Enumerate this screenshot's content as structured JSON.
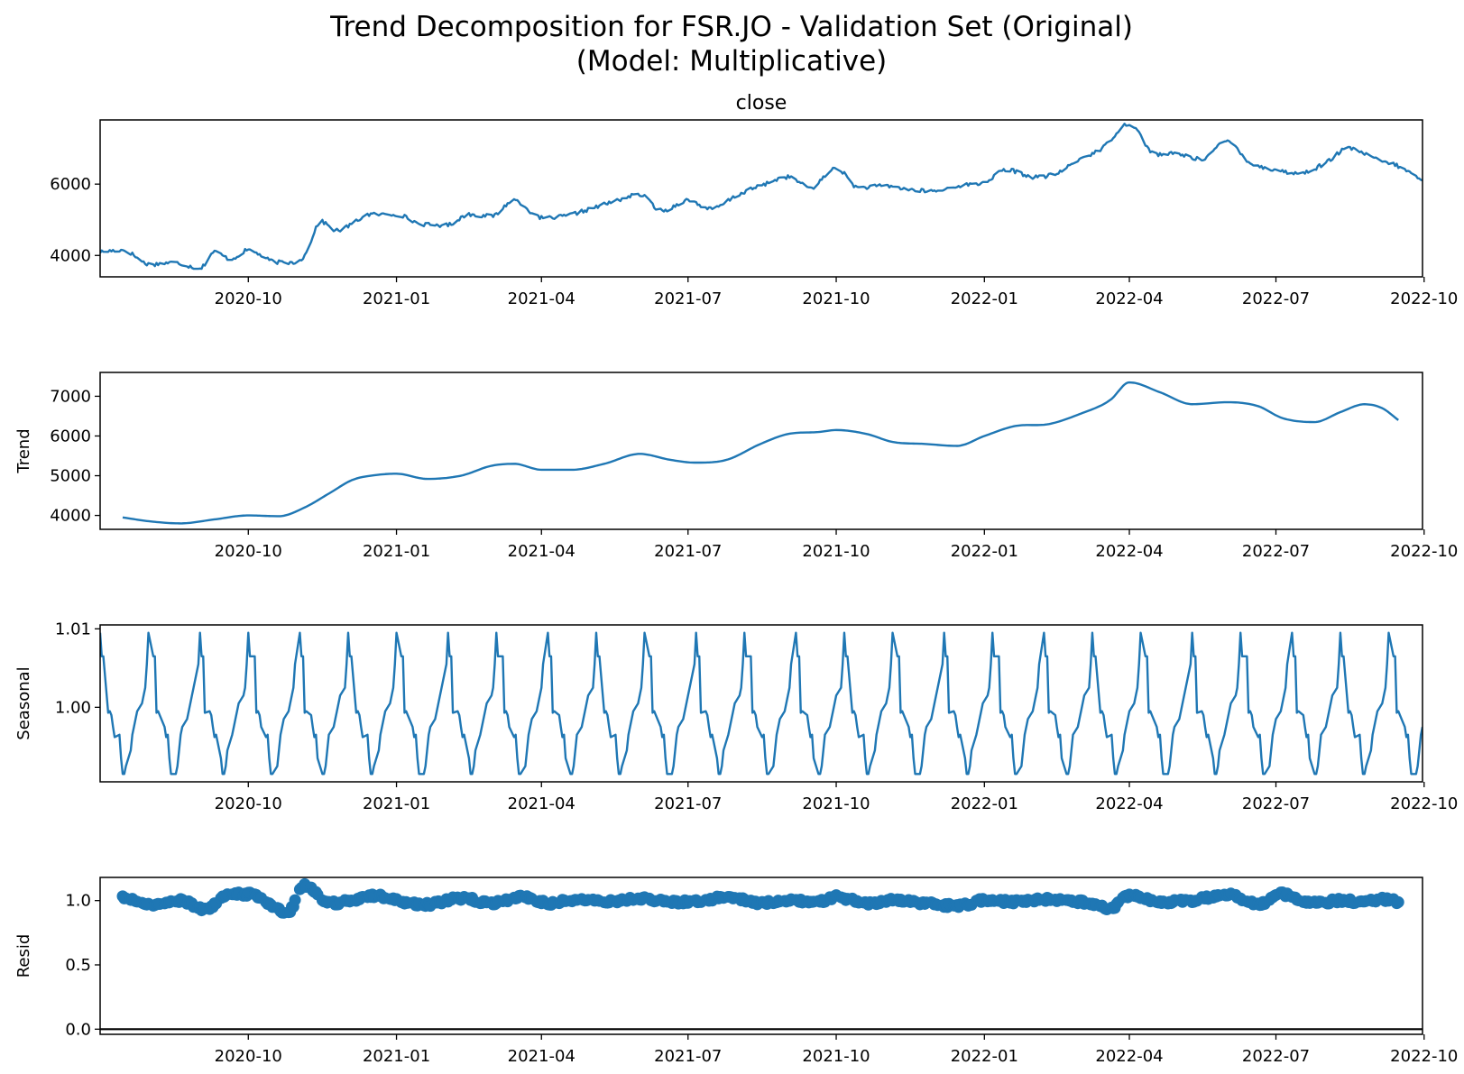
{
  "figure": {
    "title_line1": "Trend Decomposition for FSR.JO - Validation Set (Original)",
    "title_line2": "(Model: Multiplicative)",
    "line_color": "#1f77b4"
  },
  "x_ticks": [
    "2020-10",
    "2021-01",
    "2021-04",
    "2021-07",
    "2021-10",
    "2022-01",
    "2022-04",
    "2022-07",
    "2022-10"
  ],
  "chart_data": [
    {
      "type": "line",
      "title": "close",
      "ylabel": "",
      "xlim": [
        "2020-07-01",
        "2022-09-30"
      ],
      "ylim": [
        3400,
        7800
      ],
      "yticks": [
        4000,
        6000
      ],
      "x": [
        "2020-07-01",
        "2020-07-15",
        "2020-08-01",
        "2020-08-15",
        "2020-09-01",
        "2020-09-10",
        "2020-09-20",
        "2020-10-01",
        "2020-10-15",
        "2020-10-25",
        "2020-11-05",
        "2020-11-15",
        "2020-11-25",
        "2020-12-05",
        "2020-12-15",
        "2021-01-01",
        "2021-01-15",
        "2021-02-01",
        "2021-02-15",
        "2021-03-01",
        "2021-03-15",
        "2021-04-01",
        "2021-04-15",
        "2021-05-01",
        "2021-05-15",
        "2021-06-01",
        "2021-06-15",
        "2021-07-01",
        "2021-07-15",
        "2021-08-01",
        "2021-08-15",
        "2021-09-01",
        "2021-09-15",
        "2021-10-01",
        "2021-10-15",
        "2021-11-01",
        "2021-11-15",
        "2021-12-01",
        "2021-12-15",
        "2022-01-01",
        "2022-01-15",
        "2022-02-01",
        "2022-02-15",
        "2022-03-01",
        "2022-03-15",
        "2022-04-01",
        "2022-04-15",
        "2022-05-01",
        "2022-05-15",
        "2022-06-01",
        "2022-06-15",
        "2022-07-01",
        "2022-07-15",
        "2022-08-01",
        "2022-08-15",
        "2022-09-01",
        "2022-09-15",
        "2022-09-30"
      ],
      "values": [
        4100,
        4150,
        3750,
        3800,
        3650,
        4100,
        3900,
        4150,
        3850,
        3800,
        4000,
        4950,
        4700,
        4900,
        5150,
        5150,
        4900,
        4850,
        5150,
        5100,
        5550,
        5050,
        5100,
        5300,
        5500,
        5700,
        5250,
        5550,
        5300,
        5700,
        5950,
        6200,
        5900,
        6450,
        5900,
        5950,
        5850,
        5800,
        5950,
        6050,
        6400,
        6200,
        6300,
        6700,
        7000,
        7700,
        6900,
        6850,
        6700,
        7200,
        6600,
        6400,
        6300,
        6600,
        7000,
        6700,
        6500,
        6100
      ]
    },
    {
      "type": "line",
      "title": "",
      "ylabel": "Trend",
      "xlim": [
        "2020-07-01",
        "2022-09-30"
      ],
      "ylim": [
        3650,
        7600
      ],
      "yticks": [
        4000,
        5000,
        6000,
        7000
      ],
      "x": [
        "2020-07-15",
        "2020-08-01",
        "2020-08-20",
        "2020-09-10",
        "2020-10-01",
        "2020-10-20",
        "2020-11-05",
        "2020-11-20",
        "2020-12-05",
        "2020-12-20",
        "2021-01-01",
        "2021-01-20",
        "2021-02-10",
        "2021-03-01",
        "2021-03-15",
        "2021-04-01",
        "2021-04-20",
        "2021-05-10",
        "2021-06-01",
        "2021-06-20",
        "2021-07-05",
        "2021-07-25",
        "2021-08-15",
        "2021-09-01",
        "2021-09-20",
        "2021-10-01",
        "2021-10-20",
        "2021-11-05",
        "2021-11-25",
        "2021-12-15",
        "2022-01-01",
        "2022-01-20",
        "2022-02-10",
        "2022-03-01",
        "2022-03-20",
        "2022-04-01",
        "2022-04-20",
        "2022-05-10",
        "2022-06-01",
        "2022-06-20",
        "2022-07-05",
        "2022-07-25",
        "2022-08-10",
        "2022-08-25",
        "2022-09-05",
        "2022-09-15"
      ],
      "values": [
        3950,
        3850,
        3800,
        3900,
        4000,
        3980,
        4200,
        4550,
        4900,
        5020,
        5050,
        4920,
        5000,
        5250,
        5300,
        5150,
        5150,
        5300,
        5550,
        5400,
        5330,
        5400,
        5800,
        6050,
        6100,
        6150,
        6050,
        5850,
        5800,
        5750,
        6000,
        6250,
        6300,
        6550,
        6900,
        7350,
        7100,
        6800,
        6850,
        6750,
        6450,
        6350,
        6600,
        6800,
        6700,
        6400
      ]
    },
    {
      "type": "line",
      "title": "",
      "ylabel": "Seasonal",
      "xlim": [
        "2020-07-01",
        "2022-09-30"
      ],
      "ylim": [
        0.9905,
        1.0105
      ],
      "yticks": [
        1.0,
        1.01
      ],
      "tick_labels": [
        "1.00",
        "1.01"
      ],
      "period_trading_days": 22,
      "pattern": [
        1.0095,
        1.0065,
        1.0065,
        0.9993,
        0.9995,
        0.999,
        0.9975,
        0.9962,
        0.9965,
        0.9935,
        0.9915,
        0.9915,
        0.9925,
        0.9945,
        0.9965,
        0.9975,
        0.9985,
        0.9995,
        1.0005,
        1.0015,
        1.0025,
        1.0055
      ]
    },
    {
      "type": "scatter",
      "title": "",
      "ylabel": "Resid",
      "xlim": [
        "2020-07-01",
        "2022-09-30"
      ],
      "ylim": [
        -0.04,
        1.18
      ],
      "yticks": [
        0.0,
        0.5,
        1.0
      ],
      "tick_labels": [
        "0.0",
        "0.5",
        "1.0"
      ],
      "x": [
        "2020-07-15",
        "2020-08-01",
        "2020-08-20",
        "2020-09-05",
        "2020-09-15",
        "2020-10-01",
        "2020-10-15",
        "2020-10-25",
        "2020-11-05",
        "2020-11-20",
        "2020-12-05",
        "2020-12-20",
        "2021-01-01",
        "2021-01-20",
        "2021-02-10",
        "2021-03-01",
        "2021-03-20",
        "2021-04-05",
        "2021-04-25",
        "2021-05-15",
        "2021-06-01",
        "2021-06-20",
        "2021-07-05",
        "2021-07-25",
        "2021-08-15",
        "2021-09-01",
        "2021-09-20",
        "2021-10-01",
        "2021-10-20",
        "2021-11-05",
        "2021-11-25",
        "2021-12-15",
        "2022-01-01",
        "2022-01-20",
        "2022-02-10",
        "2022-03-01",
        "2022-03-20",
        "2022-04-01",
        "2022-04-20",
        "2022-05-10",
        "2022-06-01",
        "2022-06-20",
        "2022-07-05",
        "2022-07-25",
        "2022-08-10",
        "2022-08-25",
        "2022-09-05",
        "2022-09-15"
      ],
      "values": [
        1.03,
        0.97,
        1.0,
        0.93,
        1.03,
        1.05,
        0.97,
        0.9,
        1.12,
        0.98,
        1.0,
        1.04,
        1.0,
        0.97,
        1.02,
        0.98,
        1.03,
        0.98,
        1.01,
        0.99,
        1.02,
        0.99,
        0.99,
        1.03,
        0.98,
        1.0,
        0.99,
        1.03,
        0.98,
        1.0,
        0.98,
        0.96,
        1.0,
        0.99,
        1.01,
        0.99,
        0.94,
        1.04,
        0.99,
        1.0,
        1.05,
        0.97,
        1.05,
        0.98,
        1.0,
        0.99,
        1.01,
        0.99
      ]
    }
  ]
}
